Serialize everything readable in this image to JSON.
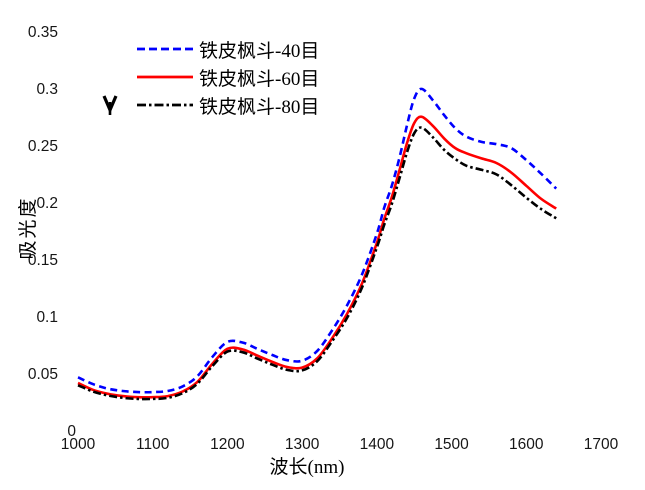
{
  "colors": {
    "background": "#ffffff",
    "text": "#000000"
  },
  "icons": {
    "down_arrow_marker": "bold V-shaped down-arrow glyph with short stem"
  },
  "chart_data": {
    "type": "line",
    "title": "",
    "xlabel": "波长(nm)",
    "ylabel": "吸光度",
    "xlim": [
      1000,
      1700
    ],
    "ylim": [
      0,
      0.35
    ],
    "x_ticks": [
      1000,
      1100,
      1200,
      1300,
      1400,
      1500,
      1600,
      1700
    ],
    "y_ticks": [
      "0",
      "0.05",
      "0.1",
      "0.15",
      "0.2",
      "0.25",
      "0.3",
      "0.35"
    ],
    "grid": false,
    "axis_lines": false,
    "legend_position": "top-left",
    "x": [
      1000,
      1020,
      1040,
      1060,
      1080,
      1100,
      1120,
      1140,
      1160,
      1180,
      1200,
      1220,
      1240,
      1260,
      1280,
      1300,
      1320,
      1340,
      1360,
      1380,
      1400,
      1410,
      1420,
      1430,
      1440,
      1450,
      1460,
      1475,
      1490,
      1505,
      1520,
      1540,
      1560,
      1580,
      1600,
      1620,
      1640
    ],
    "series": [
      {
        "name": "铁皮枫斗-40目",
        "color": "#0000fe",
        "line_style": "dashed",
        "values": [
          0.048,
          0.042,
          0.038,
          0.036,
          0.035,
          0.035,
          0.036,
          0.04,
          0.049,
          0.066,
          0.079,
          0.0785,
          0.073,
          0.0675,
          0.063,
          0.0625,
          0.071,
          0.089,
          0.111,
          0.138,
          0.174,
          0.197,
          0.216,
          0.24,
          0.268,
          0.2925,
          0.301,
          0.291,
          0.278,
          0.2665,
          0.259,
          0.2545,
          0.2525,
          0.249,
          0.2385,
          0.2265,
          0.2135
        ]
      },
      {
        "name": "铁皮枫斗-60目",
        "color": "#fe0000",
        "line_style": "solid",
        "values": [
          0.043,
          0.037,
          0.0335,
          0.0315,
          0.0305,
          0.0305,
          0.0315,
          0.0355,
          0.044,
          0.06,
          0.073,
          0.0725,
          0.067,
          0.0615,
          0.057,
          0.0565,
          0.0645,
          0.082,
          0.1035,
          0.13,
          0.166,
          0.187,
          0.206,
          0.229,
          0.2525,
          0.271,
          0.2765,
          0.2685,
          0.2575,
          0.249,
          0.2445,
          0.24,
          0.236,
          0.2275,
          0.216,
          0.2045,
          0.196
        ]
      },
      {
        "name": "铁皮枫斗-80目",
        "color": "#000000",
        "line_style": "dash-dot",
        "values": [
          0.041,
          0.0355,
          0.032,
          0.03,
          0.029,
          0.029,
          0.03,
          0.034,
          0.0425,
          0.058,
          0.0705,
          0.07,
          0.0645,
          0.059,
          0.0545,
          0.054,
          0.062,
          0.0795,
          0.1,
          0.1265,
          0.162,
          0.182,
          0.2,
          0.222,
          0.2445,
          0.262,
          0.267,
          0.2585,
          0.2475,
          0.2395,
          0.2335,
          0.23,
          0.226,
          0.2165,
          0.2055,
          0.1955,
          0.1875
        ]
      }
    ]
  }
}
